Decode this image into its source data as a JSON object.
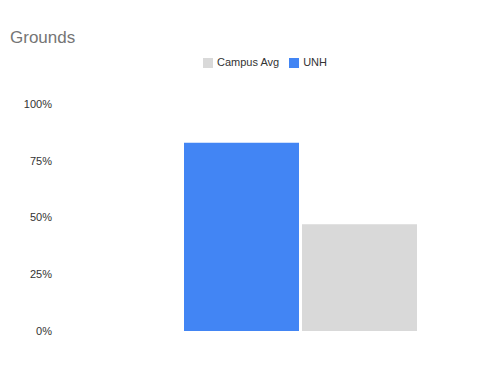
{
  "chart_data": {
    "type": "bar",
    "title": "Grounds",
    "categories": [
      null
    ],
    "series": [
      {
        "name": "UNH",
        "color": "#4285f4",
        "values": [
          83
        ]
      },
      {
        "name": "Campus Avg",
        "color": "#d9d9d9",
        "values": [
          47
        ]
      }
    ],
    "ylim": [
      0,
      100
    ],
    "yticks": [
      {
        "value": 0,
        "label": "0%"
      },
      {
        "value": 25,
        "label": "25%"
      },
      {
        "value": 50,
        "label": "50%"
      },
      {
        "value": 75,
        "label": "75%"
      },
      {
        "value": 100,
        "label": "100%"
      }
    ],
    "grid": false,
    "legend": "top",
    "tick_labels": "y"
  }
}
